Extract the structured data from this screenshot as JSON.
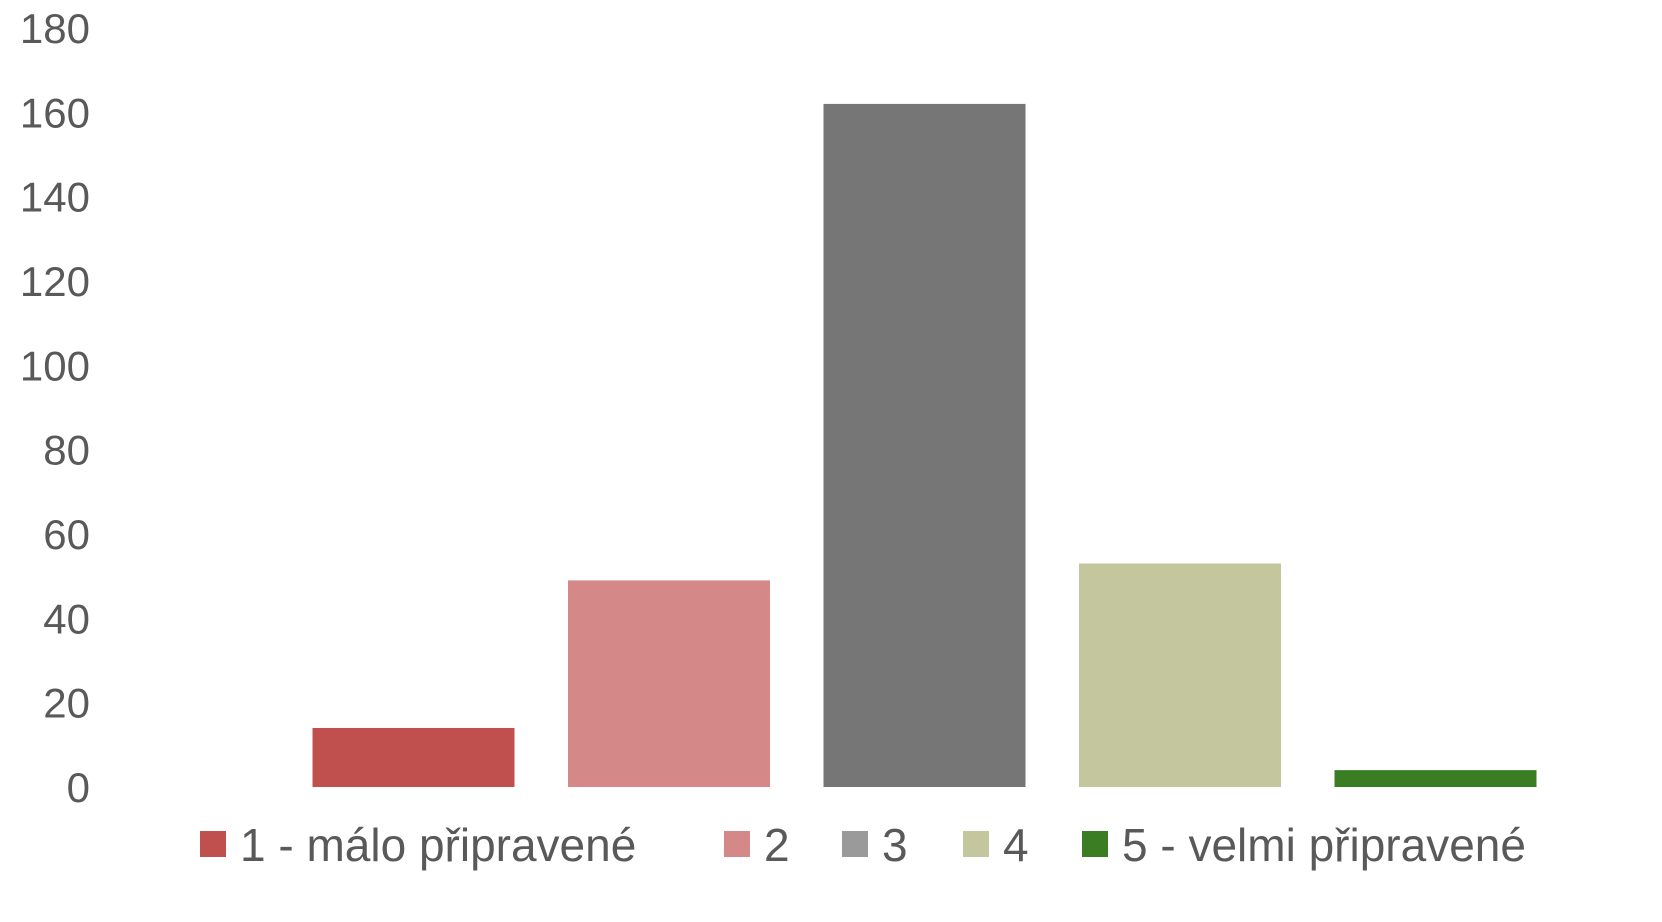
{
  "chart_data": {
    "type": "bar",
    "title": "",
    "xlabel": "",
    "ylabel": "",
    "ylim": [
      0,
      180
    ],
    "yticks": [
      0,
      20,
      40,
      60,
      80,
      100,
      120,
      140,
      160,
      180
    ],
    "grid": false,
    "legend_position": "bottom",
    "series": [
      {
        "name": "1 - málo připravené",
        "value": 14,
        "color": "#C0504D",
        "legend_color": "#C0504D"
      },
      {
        "name": "2",
        "value": 49,
        "color": "#D48887",
        "legend_color": "#D48887"
      },
      {
        "name": "3",
        "value": 162,
        "color": "#767676",
        "legend_color": "#9A9A9A"
      },
      {
        "name": "4",
        "value": 53,
        "color": "#C4C69D",
        "legend_color": "#C4C69D"
      },
      {
        "name": "5 - velmi připravené",
        "value": 4,
        "color": "#3A7D22",
        "legend_color": "#3A7D22"
      }
    ]
  }
}
